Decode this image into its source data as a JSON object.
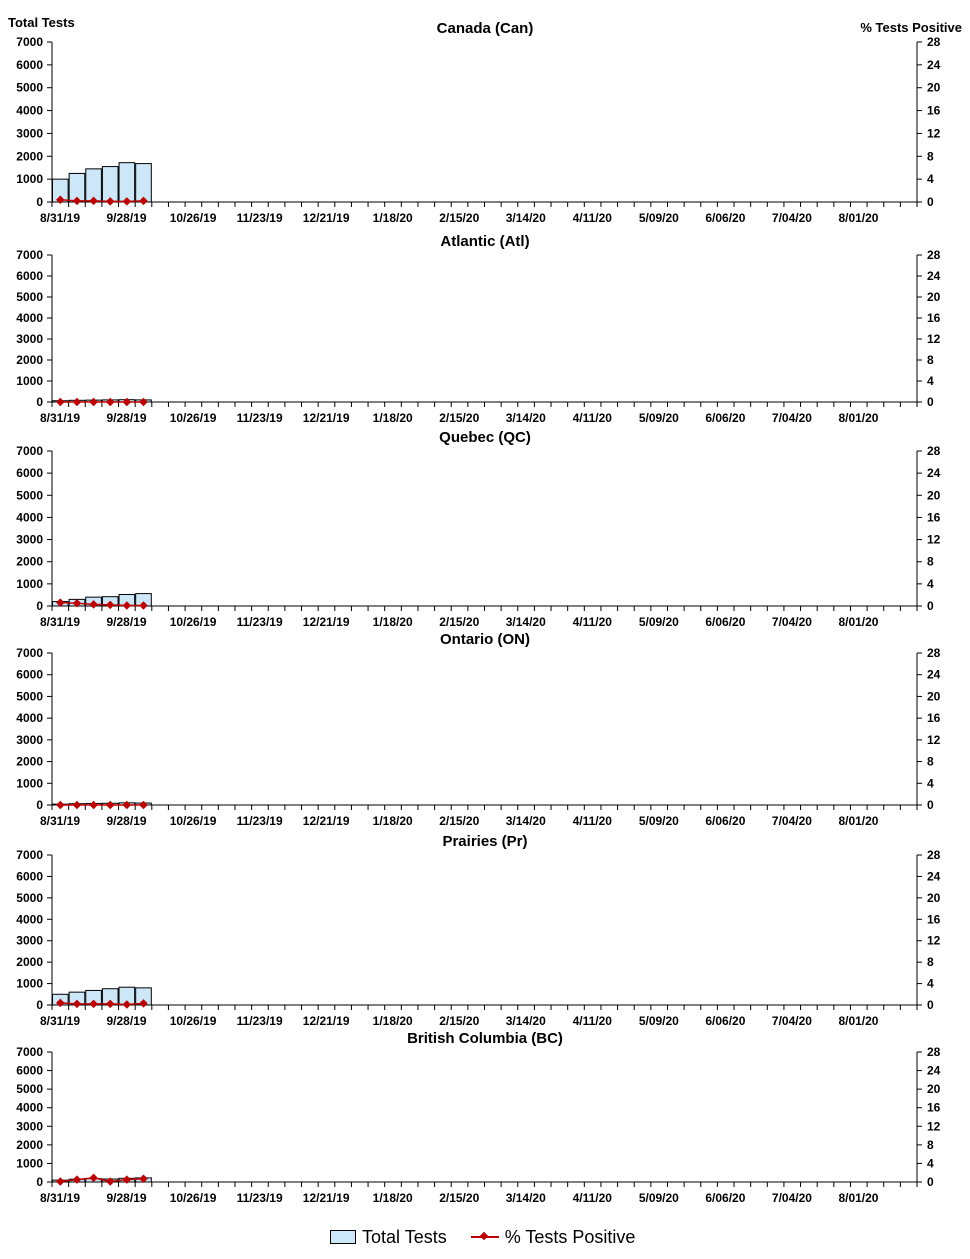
{
  "chart_data": [
    {
      "type": "bar",
      "title": "Canada (Can)",
      "ylabel": "Total Tests",
      "y2label": "% Tests Positive",
      "ylim": [
        0,
        7000
      ],
      "y2lim": [
        0,
        28
      ],
      "yticks": [
        "0",
        "1000",
        "2000",
        "3000",
        "4000",
        "5000",
        "6000",
        "7000"
      ],
      "y2ticks": [
        "0",
        "4",
        "8",
        "12",
        "16",
        "20",
        "24",
        "28"
      ],
      "xticks": [
        "8/31/19",
        "9/28/19",
        "10/26/19",
        "11/23/19",
        "12/21/19",
        "1/18/20",
        "2/15/20",
        "3/14/20",
        "4/11/20",
        "5/09/20",
        "6/06/20",
        "7/04/20",
        "8/01/20"
      ],
      "series": [
        {
          "name": "Total Tests",
          "type": "bar",
          "values": [
            1000,
            1250,
            1450,
            1550,
            1720,
            1680
          ]
        },
        {
          "name": "% Tests Positive",
          "type": "line",
          "values": [
            0.4,
            0.2,
            0.2,
            0.1,
            0.1,
            0.2
          ]
        }
      ]
    },
    {
      "type": "bar",
      "title": "Atlantic (Atl)",
      "ylim": [
        0,
        7000
      ],
      "y2lim": [
        0,
        28
      ],
      "yticks": [
        "0",
        "1000",
        "2000",
        "3000",
        "4000",
        "5000",
        "6000",
        "7000"
      ],
      "y2ticks": [
        "0",
        "4",
        "8",
        "12",
        "16",
        "20",
        "24",
        "28"
      ],
      "xticks": [
        "8/31/19",
        "9/28/19",
        "10/26/19",
        "11/23/19",
        "12/21/19",
        "1/18/20",
        "2/15/20",
        "3/14/20",
        "4/11/20",
        "5/09/20",
        "6/06/20",
        "7/04/20",
        "8/01/20"
      ],
      "series": [
        {
          "name": "Total Tests",
          "type": "bar",
          "values": [
            60,
            80,
            90,
            100,
            110,
            100
          ]
        },
        {
          "name": "% Tests Positive",
          "type": "line",
          "values": [
            0,
            0,
            0,
            0,
            0,
            0
          ]
        }
      ]
    },
    {
      "type": "bar",
      "title": "Quebec (QC)",
      "ylim": [
        0,
        7000
      ],
      "y2lim": [
        0,
        28
      ],
      "yticks": [
        "0",
        "1000",
        "2000",
        "3000",
        "4000",
        "5000",
        "6000",
        "7000"
      ],
      "y2ticks": [
        "0",
        "4",
        "8",
        "12",
        "16",
        "20",
        "24",
        "28"
      ],
      "xticks": [
        "8/31/19",
        "9/28/19",
        "10/26/19",
        "11/23/19",
        "12/21/19",
        "1/18/20",
        "2/15/20",
        "3/14/20",
        "4/11/20",
        "5/09/20",
        "6/06/20",
        "7/04/20",
        "8/01/20"
      ],
      "series": [
        {
          "name": "Total Tests",
          "type": "bar",
          "values": [
            200,
            300,
            400,
            420,
            520,
            560
          ]
        },
        {
          "name": "% Tests Positive",
          "type": "line",
          "values": [
            0.6,
            0.5,
            0.3,
            0.2,
            0.1,
            0.1
          ]
        }
      ]
    },
    {
      "type": "bar",
      "title": "Ontario (ON)",
      "ylim": [
        0,
        7000
      ],
      "y2lim": [
        0,
        28
      ],
      "yticks": [
        "0",
        "1000",
        "2000",
        "3000",
        "4000",
        "5000",
        "6000",
        "7000"
      ],
      "y2ticks": [
        "0",
        "4",
        "8",
        "12",
        "16",
        "20",
        "24",
        "28"
      ],
      "xticks": [
        "8/31/19",
        "9/28/19",
        "10/26/19",
        "11/23/19",
        "12/21/19",
        "1/18/20",
        "2/15/20",
        "3/14/20",
        "4/11/20",
        "5/09/20",
        "6/06/20",
        "7/04/20",
        "8/01/20"
      ],
      "series": [
        {
          "name": "Total Tests",
          "type": "bar",
          "values": [
            40,
            60,
            70,
            80,
            100,
            90
          ]
        },
        {
          "name": "% Tests Positive",
          "type": "line",
          "values": [
            0,
            0,
            0,
            0,
            0,
            0
          ]
        }
      ]
    },
    {
      "type": "bar",
      "title": "Prairies (Pr)",
      "ylim": [
        0,
        7000
      ],
      "y2lim": [
        0,
        28
      ],
      "yticks": [
        "0",
        "1000",
        "2000",
        "3000",
        "4000",
        "5000",
        "6000",
        "7000"
      ],
      "y2ticks": [
        "0",
        "4",
        "8",
        "12",
        "16",
        "20",
        "24",
        "28"
      ],
      "xticks": [
        "8/31/19",
        "9/28/19",
        "10/26/19",
        "11/23/19",
        "12/21/19",
        "1/18/20",
        "2/15/20",
        "3/14/20",
        "4/11/20",
        "5/09/20",
        "6/06/20",
        "7/04/20",
        "8/01/20"
      ],
      "series": [
        {
          "name": "Total Tests",
          "type": "bar",
          "values": [
            500,
            600,
            680,
            760,
            830,
            800
          ]
        },
        {
          "name": "% Tests Positive",
          "type": "line",
          "values": [
            0.4,
            0.2,
            0.2,
            0.2,
            0.1,
            0.3
          ]
        }
      ]
    },
    {
      "type": "bar",
      "title": "British Columbia (BC)",
      "ylim": [
        0,
        7000
      ],
      "y2lim": [
        0,
        28
      ],
      "yticks": [
        "0",
        "1000",
        "2000",
        "3000",
        "4000",
        "5000",
        "6000",
        "7000"
      ],
      "y2ticks": [
        "0",
        "4",
        "8",
        "12",
        "16",
        "20",
        "24",
        "28"
      ],
      "xticks": [
        "8/31/19",
        "9/28/19",
        "10/26/19",
        "11/23/19",
        "12/21/19",
        "1/18/20",
        "2/15/20",
        "3/14/20",
        "4/11/20",
        "5/09/20",
        "6/06/20",
        "7/04/20",
        "8/01/20"
      ],
      "series": [
        {
          "name": "Total Tests",
          "type": "bar",
          "values": [
            100,
            150,
            180,
            160,
            200,
            220
          ]
        },
        {
          "name": "% Tests Positive",
          "type": "line",
          "values": [
            0.1,
            0.5,
            0.9,
            0.1,
            0.5,
            0.7
          ]
        }
      ]
    }
  ],
  "legend": {
    "bar_label": "Total Tests",
    "line_label": "% Tests Positive"
  },
  "colors": {
    "bar_fill": "#cce8f8",
    "bar_stroke": "#000000",
    "line": "#c00000"
  }
}
